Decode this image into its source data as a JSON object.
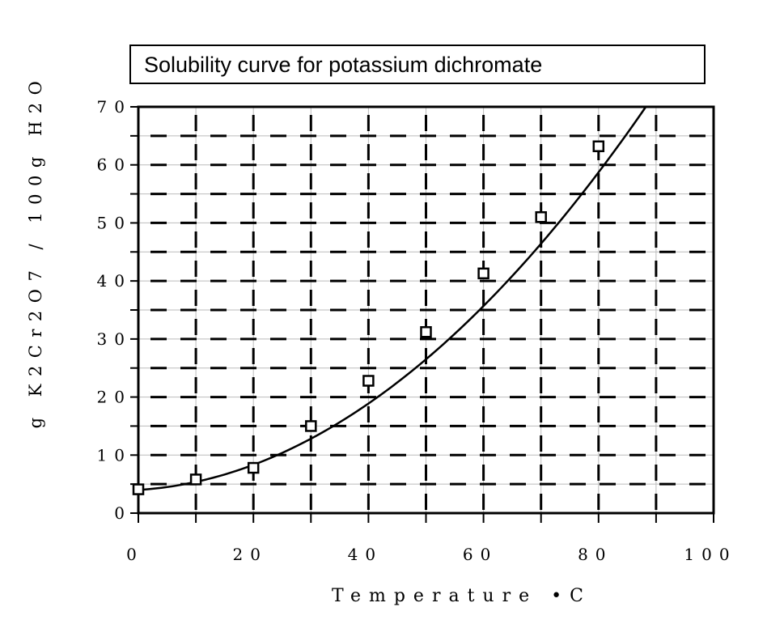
{
  "chart_data": {
    "type": "scatter",
    "title": "Solubility curve for potassium dichromate",
    "xlabel": "Temperature •C",
    "ylabel": "g K2Cr2O7 / 100g H2O",
    "xlim": [
      0,
      100
    ],
    "ylim": [
      0,
      70
    ],
    "x_ticks": [
      "0",
      "20",
      "40",
      "60",
      "80",
      "100"
    ],
    "y_ticks": [
      "0",
      "10",
      "20",
      "30",
      "40",
      "50",
      "60",
      "70"
    ],
    "grid": true,
    "series": [
      {
        "name": "K2Cr2O7",
        "marker": "open-square",
        "line": "smooth-fit",
        "x": [
          0,
          10,
          20,
          30,
          40,
          50,
          60,
          70,
          80
        ],
        "y": [
          4.1,
          5.8,
          7.8,
          15.0,
          22.8,
          31.2,
          41.3,
          51.0,
          63.2
        ]
      }
    ]
  }
}
